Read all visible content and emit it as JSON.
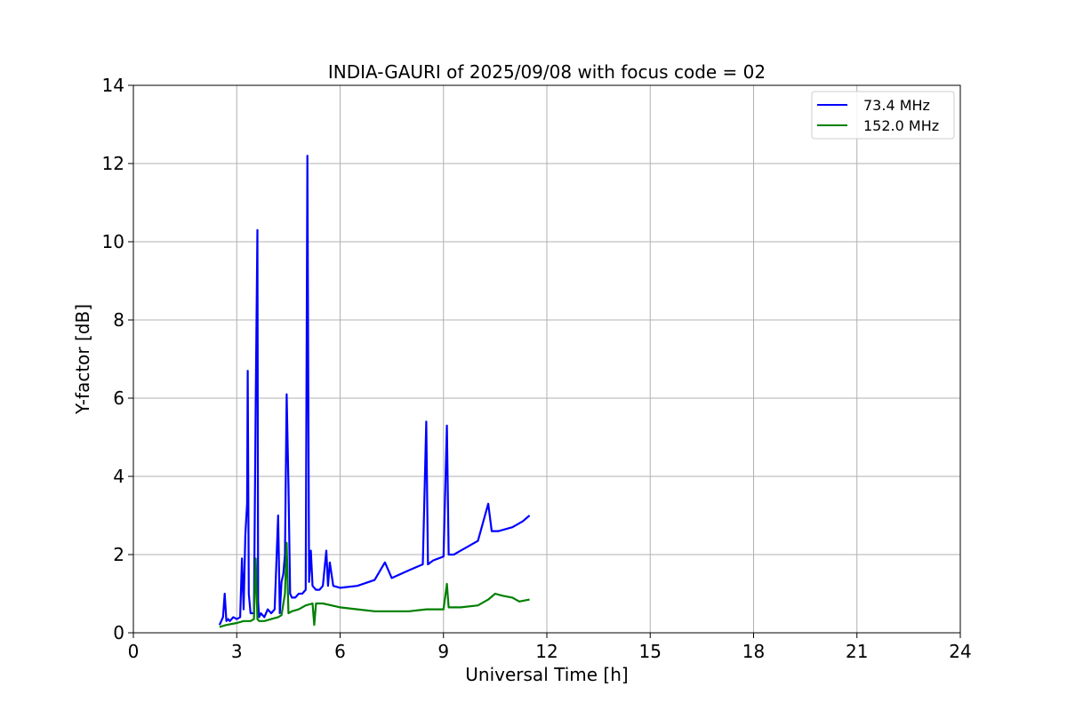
{
  "chart_data": {
    "type": "line",
    "title": "INDIA-GAURI of 2025/09/08 with focus code = 02",
    "xlabel": "Universal Time [h]",
    "ylabel": "Y-factor [dB]",
    "xlim": [
      0,
      24
    ],
    "ylim": [
      0,
      14
    ],
    "xticks": [
      0,
      3,
      6,
      9,
      12,
      15,
      18,
      21,
      24
    ],
    "yticks": [
      0,
      2,
      4,
      6,
      8,
      10,
      12,
      14
    ],
    "grid": true,
    "legend_position": "top-right",
    "series": [
      {
        "name": " 73.4 MHz",
        "color": "#0000ff",
        "x": [
          2.5,
          2.6,
          2.65,
          2.7,
          2.75,
          2.8,
          2.9,
          3.0,
          3.1,
          3.15,
          3.2,
          3.25,
          3.3,
          3.32,
          3.35,
          3.4,
          3.5,
          3.55,
          3.6,
          3.62,
          3.65,
          3.7,
          3.8,
          3.9,
          4.0,
          4.1,
          4.2,
          4.25,
          4.3,
          4.35,
          4.4,
          4.45,
          4.48,
          4.5,
          4.55,
          4.6,
          4.7,
          4.8,
          4.9,
          5.0,
          5.05,
          5.1,
          5.15,
          5.2,
          5.3,
          5.4,
          5.5,
          5.6,
          5.65,
          5.7,
          5.8,
          6.0,
          6.5,
          7.0,
          7.3,
          7.5,
          8.0,
          8.4,
          8.5,
          8.55,
          8.7,
          9.0,
          9.1,
          9.15,
          9.3,
          9.5,
          10.0,
          10.3,
          10.4,
          10.6,
          11.0,
          11.3,
          11.5
        ],
        "y": [
          0.2,
          0.4,
          1.0,
          0.3,
          0.35,
          0.3,
          0.4,
          0.35,
          0.4,
          1.9,
          0.6,
          2.5,
          3.3,
          6.7,
          1.0,
          0.5,
          0.5,
          5.9,
          10.3,
          0.8,
          0.4,
          0.5,
          0.4,
          0.6,
          0.5,
          0.6,
          3.0,
          0.5,
          1.3,
          1.5,
          2.0,
          6.1,
          4.7,
          3.8,
          1.0,
          0.9,
          0.9,
          1.0,
          1.0,
          1.1,
          12.2,
          1.3,
          2.1,
          1.2,
          1.1,
          1.1,
          1.2,
          2.1,
          1.2,
          1.8,
          1.2,
          1.15,
          1.2,
          1.35,
          1.8,
          1.4,
          1.6,
          1.75,
          5.4,
          1.75,
          1.85,
          1.95,
          5.3,
          2.0,
          2.0,
          2.1,
          2.35,
          3.3,
          2.6,
          2.6,
          2.7,
          2.85,
          3.0
        ]
      },
      {
        "name": "152.0 MHz",
        "color": "#008000",
        "x": [
          2.5,
          2.7,
          3.0,
          3.2,
          3.4,
          3.5,
          3.55,
          3.6,
          3.65,
          3.8,
          4.0,
          4.2,
          4.3,
          4.4,
          4.45,
          4.5,
          4.6,
          4.8,
          5.0,
          5.2,
          5.25,
          5.3,
          5.5,
          6.0,
          6.5,
          7.0,
          7.5,
          8.0,
          8.5,
          9.0,
          9.1,
          9.15,
          9.5,
          10.0,
          10.3,
          10.5,
          10.7,
          11.0,
          11.2,
          11.5
        ],
        "y": [
          0.15,
          0.2,
          0.25,
          0.3,
          0.3,
          0.35,
          1.9,
          0.35,
          0.3,
          0.3,
          0.35,
          0.4,
          0.45,
          1.0,
          2.3,
          0.5,
          0.55,
          0.6,
          0.7,
          0.75,
          0.2,
          0.75,
          0.75,
          0.65,
          0.6,
          0.55,
          0.55,
          0.55,
          0.6,
          0.6,
          1.25,
          0.65,
          0.65,
          0.7,
          0.85,
          1.0,
          0.95,
          0.9,
          0.8,
          0.85
        ]
      }
    ]
  }
}
